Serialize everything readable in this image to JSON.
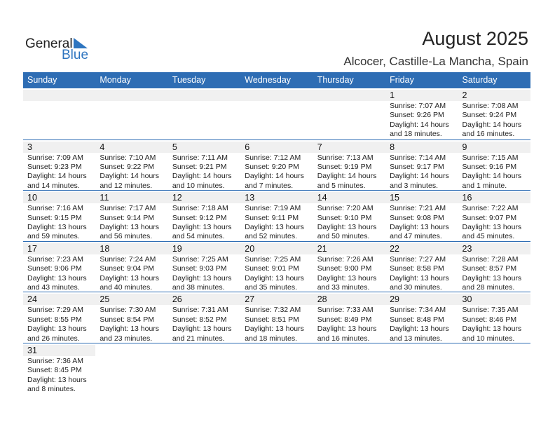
{
  "logo": {
    "text1": "General",
    "text2": "Blue"
  },
  "header": {
    "title": "August 2025",
    "location": "Alcocer, Castille-La Mancha, Spain"
  },
  "weekdays": [
    "Sunday",
    "Monday",
    "Tuesday",
    "Wednesday",
    "Thursday",
    "Friday",
    "Saturday"
  ],
  "colors": {
    "accent": "#2e6db4",
    "band": "#f0f0f0"
  },
  "weeks": [
    [
      null,
      null,
      null,
      null,
      null,
      {
        "day": "1",
        "sunrise": "Sunrise: 7:07 AM",
        "sunset": "Sunset: 9:26 PM",
        "daylight1": "Daylight: 14 hours",
        "daylight2": "and 18 minutes."
      },
      {
        "day": "2",
        "sunrise": "Sunrise: 7:08 AM",
        "sunset": "Sunset: 9:24 PM",
        "daylight1": "Daylight: 14 hours",
        "daylight2": "and 16 minutes."
      }
    ],
    [
      {
        "day": "3",
        "sunrise": "Sunrise: 7:09 AM",
        "sunset": "Sunset: 9:23 PM",
        "daylight1": "Daylight: 14 hours",
        "daylight2": "and 14 minutes."
      },
      {
        "day": "4",
        "sunrise": "Sunrise: 7:10 AM",
        "sunset": "Sunset: 9:22 PM",
        "daylight1": "Daylight: 14 hours",
        "daylight2": "and 12 minutes."
      },
      {
        "day": "5",
        "sunrise": "Sunrise: 7:11 AM",
        "sunset": "Sunset: 9:21 PM",
        "daylight1": "Daylight: 14 hours",
        "daylight2": "and 10 minutes."
      },
      {
        "day": "6",
        "sunrise": "Sunrise: 7:12 AM",
        "sunset": "Sunset: 9:20 PM",
        "daylight1": "Daylight: 14 hours",
        "daylight2": "and 7 minutes."
      },
      {
        "day": "7",
        "sunrise": "Sunrise: 7:13 AM",
        "sunset": "Sunset: 9:19 PM",
        "daylight1": "Daylight: 14 hours",
        "daylight2": "and 5 minutes."
      },
      {
        "day": "8",
        "sunrise": "Sunrise: 7:14 AM",
        "sunset": "Sunset: 9:17 PM",
        "daylight1": "Daylight: 14 hours",
        "daylight2": "and 3 minutes."
      },
      {
        "day": "9",
        "sunrise": "Sunrise: 7:15 AM",
        "sunset": "Sunset: 9:16 PM",
        "daylight1": "Daylight: 14 hours",
        "daylight2": "and 1 minute."
      }
    ],
    [
      {
        "day": "10",
        "sunrise": "Sunrise: 7:16 AM",
        "sunset": "Sunset: 9:15 PM",
        "daylight1": "Daylight: 13 hours",
        "daylight2": "and 59 minutes."
      },
      {
        "day": "11",
        "sunrise": "Sunrise: 7:17 AM",
        "sunset": "Sunset: 9:14 PM",
        "daylight1": "Daylight: 13 hours",
        "daylight2": "and 56 minutes."
      },
      {
        "day": "12",
        "sunrise": "Sunrise: 7:18 AM",
        "sunset": "Sunset: 9:12 PM",
        "daylight1": "Daylight: 13 hours",
        "daylight2": "and 54 minutes."
      },
      {
        "day": "13",
        "sunrise": "Sunrise: 7:19 AM",
        "sunset": "Sunset: 9:11 PM",
        "daylight1": "Daylight: 13 hours",
        "daylight2": "and 52 minutes."
      },
      {
        "day": "14",
        "sunrise": "Sunrise: 7:20 AM",
        "sunset": "Sunset: 9:10 PM",
        "daylight1": "Daylight: 13 hours",
        "daylight2": "and 50 minutes."
      },
      {
        "day": "15",
        "sunrise": "Sunrise: 7:21 AM",
        "sunset": "Sunset: 9:08 PM",
        "daylight1": "Daylight: 13 hours",
        "daylight2": "and 47 minutes."
      },
      {
        "day": "16",
        "sunrise": "Sunrise: 7:22 AM",
        "sunset": "Sunset: 9:07 PM",
        "daylight1": "Daylight: 13 hours",
        "daylight2": "and 45 minutes."
      }
    ],
    [
      {
        "day": "17",
        "sunrise": "Sunrise: 7:23 AM",
        "sunset": "Sunset: 9:06 PM",
        "daylight1": "Daylight: 13 hours",
        "daylight2": "and 43 minutes."
      },
      {
        "day": "18",
        "sunrise": "Sunrise: 7:24 AM",
        "sunset": "Sunset: 9:04 PM",
        "daylight1": "Daylight: 13 hours",
        "daylight2": "and 40 minutes."
      },
      {
        "day": "19",
        "sunrise": "Sunrise: 7:25 AM",
        "sunset": "Sunset: 9:03 PM",
        "daylight1": "Daylight: 13 hours",
        "daylight2": "and 38 minutes."
      },
      {
        "day": "20",
        "sunrise": "Sunrise: 7:25 AM",
        "sunset": "Sunset: 9:01 PM",
        "daylight1": "Daylight: 13 hours",
        "daylight2": "and 35 minutes."
      },
      {
        "day": "21",
        "sunrise": "Sunrise: 7:26 AM",
        "sunset": "Sunset: 9:00 PM",
        "daylight1": "Daylight: 13 hours",
        "daylight2": "and 33 minutes."
      },
      {
        "day": "22",
        "sunrise": "Sunrise: 7:27 AM",
        "sunset": "Sunset: 8:58 PM",
        "daylight1": "Daylight: 13 hours",
        "daylight2": "and 30 minutes."
      },
      {
        "day": "23",
        "sunrise": "Sunrise: 7:28 AM",
        "sunset": "Sunset: 8:57 PM",
        "daylight1": "Daylight: 13 hours",
        "daylight2": "and 28 minutes."
      }
    ],
    [
      {
        "day": "24",
        "sunrise": "Sunrise: 7:29 AM",
        "sunset": "Sunset: 8:55 PM",
        "daylight1": "Daylight: 13 hours",
        "daylight2": "and 26 minutes."
      },
      {
        "day": "25",
        "sunrise": "Sunrise: 7:30 AM",
        "sunset": "Sunset: 8:54 PM",
        "daylight1": "Daylight: 13 hours",
        "daylight2": "and 23 minutes."
      },
      {
        "day": "26",
        "sunrise": "Sunrise: 7:31 AM",
        "sunset": "Sunset: 8:52 PM",
        "daylight1": "Daylight: 13 hours",
        "daylight2": "and 21 minutes."
      },
      {
        "day": "27",
        "sunrise": "Sunrise: 7:32 AM",
        "sunset": "Sunset: 8:51 PM",
        "daylight1": "Daylight: 13 hours",
        "daylight2": "and 18 minutes."
      },
      {
        "day": "28",
        "sunrise": "Sunrise: 7:33 AM",
        "sunset": "Sunset: 8:49 PM",
        "daylight1": "Daylight: 13 hours",
        "daylight2": "and 16 minutes."
      },
      {
        "day": "29",
        "sunrise": "Sunrise: 7:34 AM",
        "sunset": "Sunset: 8:48 PM",
        "daylight1": "Daylight: 13 hours",
        "daylight2": "and 13 minutes."
      },
      {
        "day": "30",
        "sunrise": "Sunrise: 7:35 AM",
        "sunset": "Sunset: 8:46 PM",
        "daylight1": "Daylight: 13 hours",
        "daylight2": "and 10 minutes."
      }
    ],
    [
      {
        "day": "31",
        "sunrise": "Sunrise: 7:36 AM",
        "sunset": "Sunset: 8:45 PM",
        "daylight1": "Daylight: 13 hours",
        "daylight2": "and 8 minutes."
      },
      null,
      null,
      null,
      null,
      null,
      null
    ]
  ]
}
